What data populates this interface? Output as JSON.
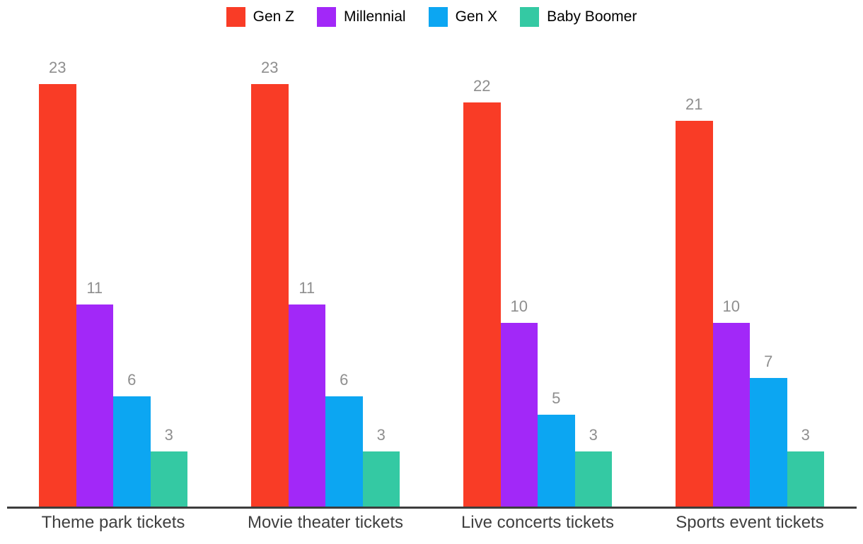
{
  "chart_data": {
    "type": "bar",
    "title": "",
    "xlabel": "",
    "ylabel": "",
    "categories": [
      "Theme park tickets",
      "Movie theater tickets",
      "Live concerts tickets",
      "Sports event tickets"
    ],
    "series": [
      {
        "name": "Gen Z",
        "color": "#f93c26",
        "values": [
          23,
          23,
          22,
          21
        ]
      },
      {
        "name": "Millennial",
        "color": "#a228f8",
        "values": [
          11,
          11,
          10,
          10
        ]
      },
      {
        "name": "Gen X",
        "color": "#0ca6f2",
        "values": [
          6,
          6,
          5,
          7
        ]
      },
      {
        "name": "Baby Boomer",
        "color": "#34c9a3",
        "values": [
          3,
          3,
          3,
          3
        ]
      }
    ],
    "ylim": [
      0,
      23
    ],
    "grid": false,
    "value_labels_shown": true,
    "legend_position": "top-center",
    "colors": {
      "axis_line": "#3d3d3d",
      "value_label": "#8e8e8e",
      "category_label": "#3f3f3f",
      "legend_text": "#000000",
      "background": "#ffffff"
    }
  }
}
